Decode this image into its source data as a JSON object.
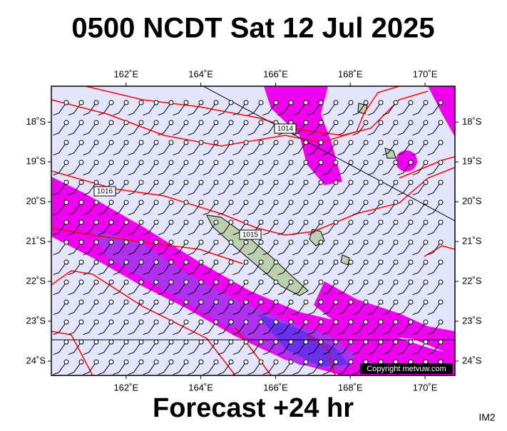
{
  "header": {
    "title": "0500 NCDT Sat 12 Jul 2025"
  },
  "map": {
    "lon_lim": [
      160,
      170.8
    ],
    "lat_lim": [
      -17.1,
      -24.36
    ],
    "lon_ticks": [
      {
        "value": 162,
        "label": "162˚E"
      },
      {
        "value": 164,
        "label": "164˚E"
      },
      {
        "value": 166,
        "label": "166˚E"
      },
      {
        "value": 168,
        "label": "168˚E"
      },
      {
        "value": 170,
        "label": "170˚E"
      }
    ],
    "lat_ticks": [
      {
        "value": -18,
        "label": "18˚S"
      },
      {
        "value": -19,
        "label": "19˚S"
      },
      {
        "value": -20,
        "label": "20˚S"
      },
      {
        "value": -21,
        "label": "21˚S"
      },
      {
        "value": -22,
        "label": "22˚S"
      },
      {
        "value": -23,
        "label": "23˚S"
      },
      {
        "value": -24,
        "label": "24˚S"
      }
    ],
    "isobar_labels": [
      "1014",
      "1016",
      "1015"
    ],
    "copyright": "Copyright metvuw.com"
  },
  "footer": {
    "caption": "Forecast +24 hr",
    "code": "IM2"
  }
}
